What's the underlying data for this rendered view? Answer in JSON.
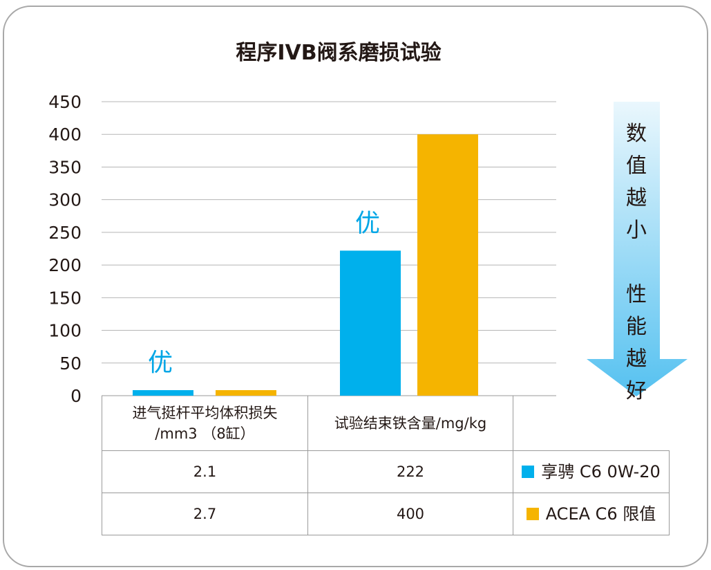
{
  "chart_data": {
    "type": "bar",
    "title": "程序IVB阀系磨损试验",
    "categories": [
      "进气挺杆平均体积损失/mm3 （8缸）",
      "试验结束铁含量/mg/kg"
    ],
    "category_lines": [
      [
        "进气挺杆平均体积损失",
        "/mm3 （8缸）"
      ],
      [
        "试验结束铁含量/mg/kg"
      ]
    ],
    "series": [
      {
        "name": "享骋 C6 0W-20",
        "values": [
          2.1,
          222
        ],
        "color": "#00b0ec"
      },
      {
        "name": "ACEA C6 限值",
        "values": [
          2.7,
          400
        ],
        "color": "#f5b400"
      }
    ],
    "ylim": [
      0,
      450
    ],
    "yticks": [
      0,
      50,
      100,
      150,
      200,
      250,
      300,
      350,
      400,
      450
    ],
    "grid": true,
    "annotations": [
      "优",
      "优"
    ],
    "arrow_text": [
      "数",
      "值",
      "越",
      "小",
      "",
      "性",
      "能",
      "越",
      "好"
    ],
    "table_values": [
      [
        "2.1",
        "222"
      ],
      [
        "2.7",
        "400"
      ]
    ]
  }
}
